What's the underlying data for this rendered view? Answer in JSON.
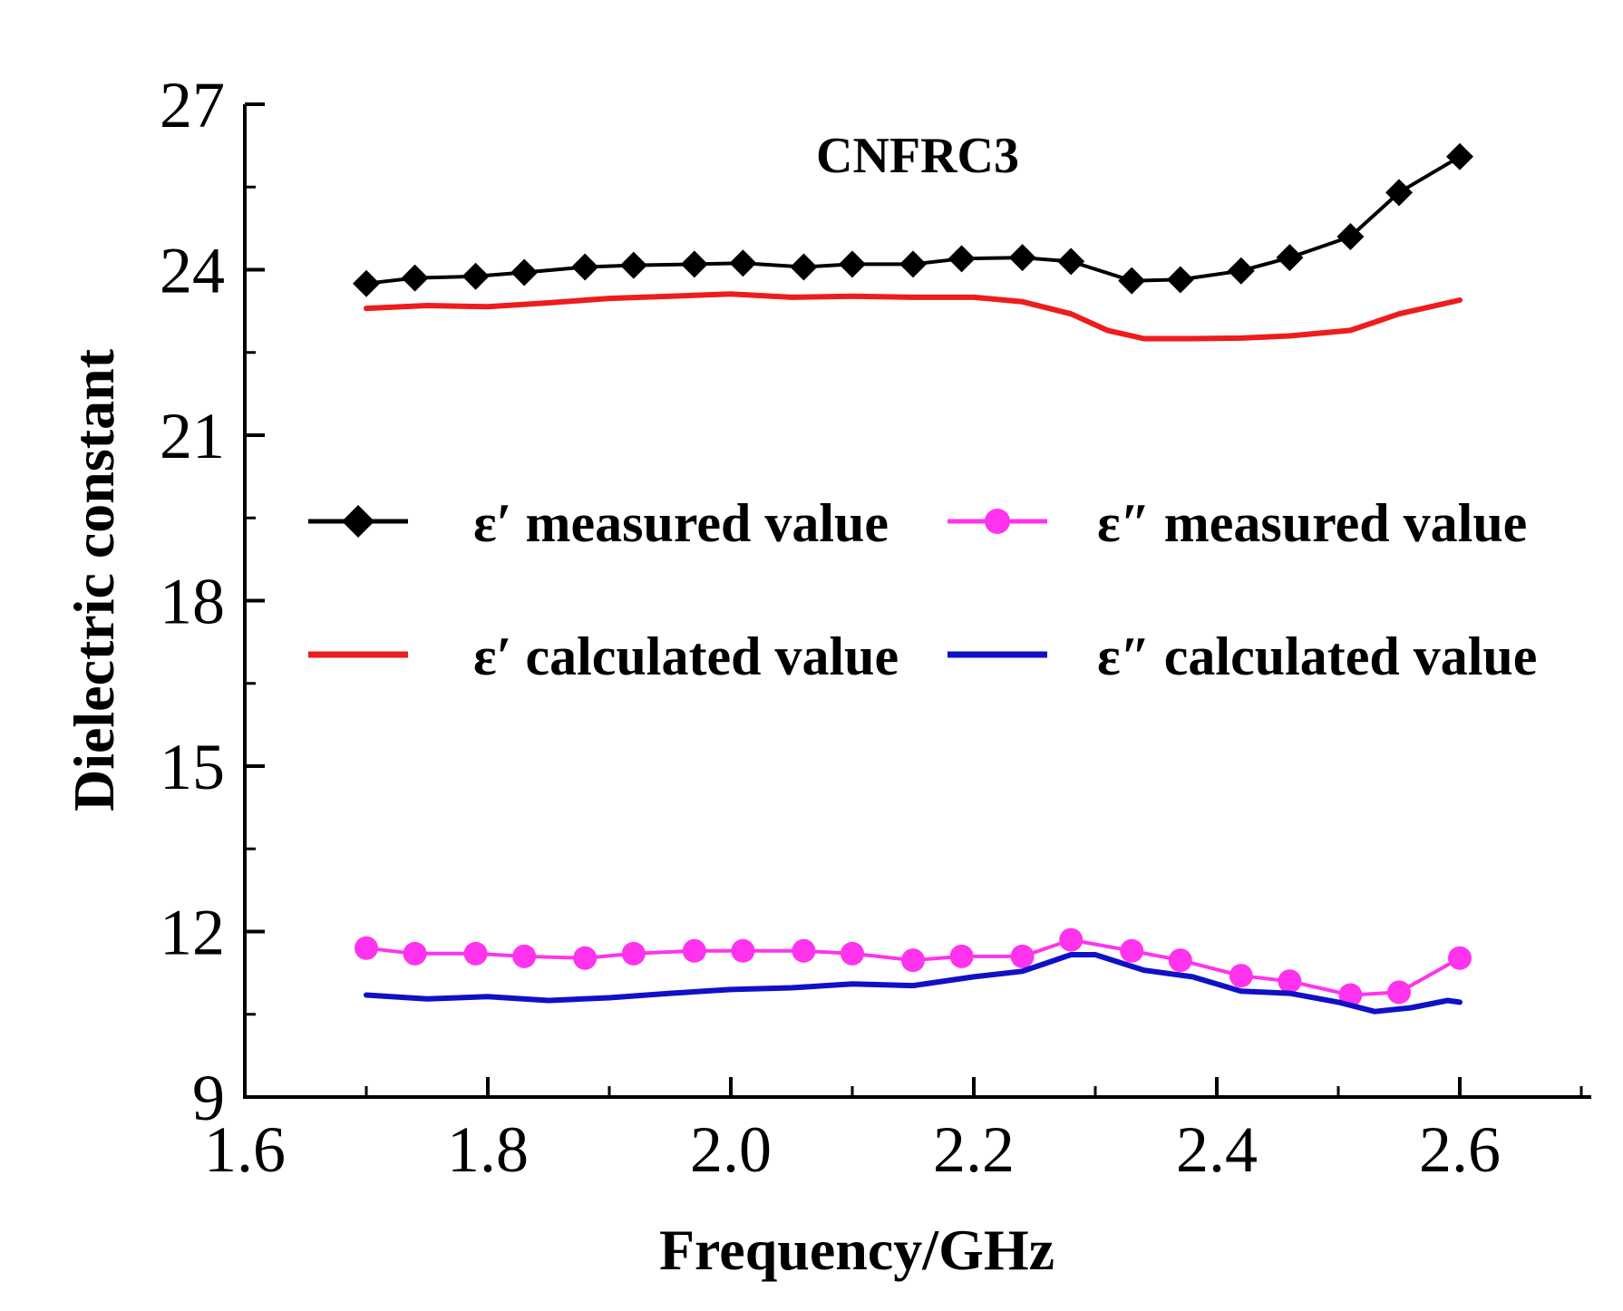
{
  "chart_data": {
    "type": "line",
    "title": "CNFRC3",
    "xlabel": "Frequency/GHz",
    "ylabel": "Dielectric constant",
    "xlim": [
      1.6,
      2.7
    ],
    "ylim": [
      9,
      27
    ],
    "xticks": [
      1.6,
      1.8,
      2.0,
      2.2,
      2.4,
      2.6
    ],
    "xtick_labels": [
      "1.6",
      "1.8",
      "2.0",
      "2.2",
      "2.4",
      "2.6"
    ],
    "yticks": [
      9,
      12,
      15,
      18,
      21,
      24,
      27
    ],
    "ytick_labels": [
      "9",
      "12",
      "15",
      "18",
      "21",
      "24",
      "27"
    ],
    "grid": false,
    "legend_position": "middle",
    "series": [
      {
        "name": "ε′ measured value",
        "color": "#000000",
        "marker": "diamond",
        "x": [
          1.7,
          1.74,
          1.79,
          1.83,
          1.88,
          1.92,
          1.97,
          2.01,
          2.06,
          2.1,
          2.15,
          2.19,
          2.24,
          2.28,
          2.33,
          2.37,
          2.42,
          2.46,
          2.51,
          2.55,
          2.6
        ],
        "y": [
          23.75,
          23.85,
          23.88,
          23.95,
          24.05,
          24.08,
          24.1,
          24.12,
          24.05,
          24.1,
          24.1,
          24.2,
          24.22,
          24.15,
          23.8,
          23.82,
          23.98,
          24.22,
          24.6,
          25.4,
          26.05
        ]
      },
      {
        "name": "ε′ calculated value",
        "color": "#ee1c1c",
        "marker": "none",
        "x": [
          1.7,
          1.75,
          1.8,
          1.85,
          1.9,
          1.95,
          2.0,
          2.05,
          2.1,
          2.15,
          2.2,
          2.24,
          2.28,
          2.31,
          2.34,
          2.38,
          2.42,
          2.46,
          2.51,
          2.55,
          2.6
        ],
        "y": [
          23.3,
          23.35,
          23.33,
          23.4,
          23.48,
          23.52,
          23.56,
          23.5,
          23.52,
          23.5,
          23.5,
          23.42,
          23.2,
          22.9,
          22.75,
          22.75,
          22.76,
          22.8,
          22.9,
          23.2,
          23.45
        ]
      },
      {
        "name": "ε″ measured value",
        "color": "#ff33ee",
        "marker": "circle",
        "x": [
          1.7,
          1.74,
          1.79,
          1.83,
          1.88,
          1.92,
          1.97,
          2.01,
          2.06,
          2.1,
          2.15,
          2.19,
          2.24,
          2.28,
          2.33,
          2.37,
          2.42,
          2.46,
          2.51,
          2.55,
          2.6
        ],
        "y": [
          11.7,
          11.6,
          11.6,
          11.55,
          11.52,
          11.6,
          11.65,
          11.65,
          11.65,
          11.6,
          11.48,
          11.55,
          11.55,
          11.85,
          11.65,
          11.48,
          11.2,
          11.1,
          10.85,
          10.9,
          11.52
        ]
      },
      {
        "name": "ε″ calculated value",
        "color": "#1010c8",
        "marker": "none",
        "x": [
          1.7,
          1.75,
          1.8,
          1.85,
          1.9,
          1.95,
          2.0,
          2.05,
          2.1,
          2.15,
          2.2,
          2.24,
          2.28,
          2.3,
          2.34,
          2.38,
          2.42,
          2.46,
          2.5,
          2.53,
          2.56,
          2.59,
          2.6
        ],
        "y": [
          10.85,
          10.78,
          10.82,
          10.75,
          10.8,
          10.88,
          10.95,
          10.98,
          11.05,
          11.02,
          11.18,
          11.28,
          11.58,
          11.58,
          11.3,
          11.18,
          10.92,
          10.88,
          10.72,
          10.55,
          10.62,
          10.75,
          10.72
        ]
      }
    ]
  }
}
